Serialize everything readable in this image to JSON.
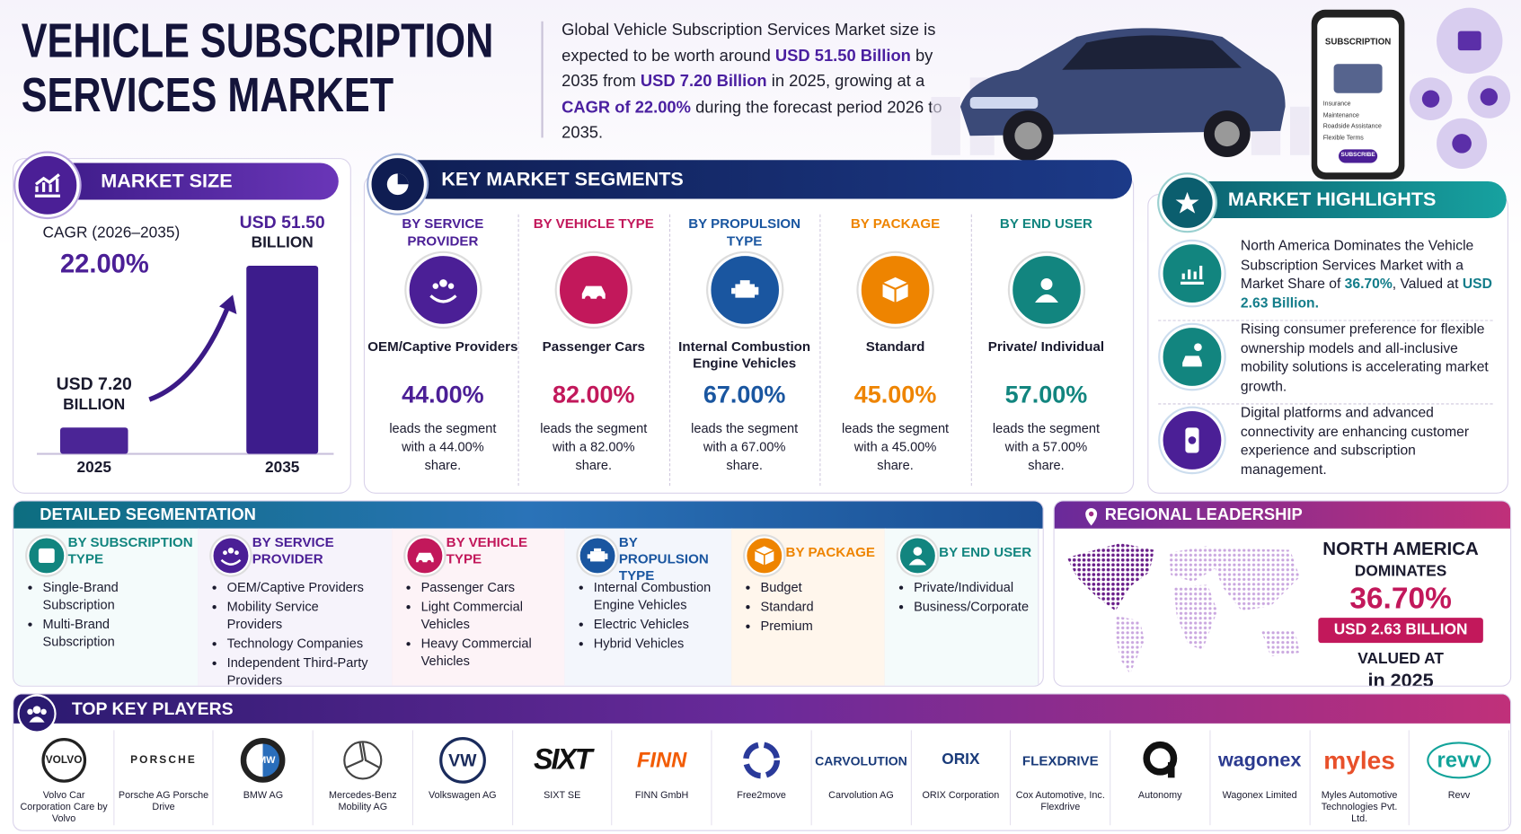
{
  "header": {
    "title_lines": [
      "VEHICLE SUBSCRIPTION",
      "SERVICES MARKET"
    ],
    "intro": [
      {
        "text": "Global Vehicle Subscription Services Market size is expected to be worth around "
      },
      {
        "text": "USD 51.50 Billion",
        "em": true
      },
      {
        "text": " by 2035 from "
      },
      {
        "text": "USD 7.20 Billion",
        "em": true
      },
      {
        "text": " in 2025, growing at a "
      },
      {
        "text": "CAGR of 22.00%",
        "em": true
      },
      {
        "text": " during the forecast period 2026 to 2035."
      }
    ],
    "phone": {
      "title": "SUBSCRIPTION",
      "items": [
        "Insurance",
        "Maintenance",
        "Roadside Assistance",
        "Flexible Terms"
      ],
      "button": "SUBSCRIBE"
    }
  },
  "market_size": {
    "title": "MARKET SIZE",
    "cagr_label": "CAGR (2026–2035)",
    "cagr_value": "22.00%",
    "ylim": [
      0,
      51.5
    ],
    "bars": [
      {
        "year": "2025",
        "value": 7.2,
        "label": "USD 7.20",
        "unit": "BILLION"
      },
      {
        "year": "2035",
        "value": 51.5,
        "label": "USD 51.50",
        "unit": "BILLION"
      }
    ]
  },
  "key_segments": {
    "title": "KEY MARKET SEGMENTS",
    "columns": [
      {
        "heading": "BY SERVICE PROVIDER",
        "color": "#4b1f96",
        "leader": "OEM/Captive Providers",
        "share": "44.00%",
        "note": "leads the segment with a 44.00% share."
      },
      {
        "heading": "BY VEHICLE TYPE",
        "color": "#c2185b",
        "leader": "Passenger Cars",
        "share": "82.00%",
        "note": "leads the segment with a 82.00% share."
      },
      {
        "heading": "BY PROPULSION TYPE",
        "color": "#1a56a0",
        "leader": "Internal Combustion Engine Vehicles",
        "share": "67.00%",
        "note": "leads the segment with a 67.00% share."
      },
      {
        "heading": "BY PACKAGE",
        "color": "#ee8400",
        "leader": "Standard",
        "share": "45.00%",
        "note": "leads the segment with a 45.00% share."
      },
      {
        "heading": "BY END USER",
        "color": "#12857f",
        "leader": "Private/ Individual",
        "share": "57.00%",
        "note": "leads the segment with a 57.00% share."
      }
    ]
  },
  "highlights": {
    "title": "MARKET HIGHLIGHTS",
    "items": [
      [
        {
          "text": "North America Dominates the Vehicle Subscription Services Market with a Market Share of "
        },
        {
          "text": "36.70%",
          "em": true
        },
        {
          "text": ", Valued at "
        },
        {
          "text": "USD 2.63 Billion.",
          "em": true
        }
      ],
      [
        {
          "text": "Rising consumer preference for flexible ownership models and all-inclusive mobility solutions is accelerating market growth."
        }
      ],
      [
        {
          "text": "Digital platforms and advanced connectivity are enhancing customer experience and subscription management."
        }
      ]
    ]
  },
  "detailed": {
    "title": "DETAILED SEGMENTATION",
    "columns": [
      {
        "heading": "BY SUBSCRIPTION TYPE",
        "color": "#12857f",
        "items": [
          "Single-Brand Subscription",
          "Multi-Brand Subscription"
        ]
      },
      {
        "heading": "BY SERVICE PROVIDER",
        "color": "#4b1f96",
        "items": [
          "OEM/Captive Providers",
          "Mobility Service Providers",
          "Technology Companies",
          "Independent Third-Party Providers"
        ]
      },
      {
        "heading": "BY VEHICLE TYPE",
        "color": "#c2185b",
        "items": [
          "Passenger Cars",
          "Light Commercial Vehicles",
          "Heavy Commercial Vehicles"
        ]
      },
      {
        "heading": "BY PROPULSION TYPE",
        "color": "#1a56a0",
        "items": [
          "Internal Combustion Engine Vehicles",
          "Electric Vehicles",
          "Hybrid Vehicles"
        ]
      },
      {
        "heading": "BY PACKAGE",
        "color": "#ee8400",
        "items": [
          "Budget",
          "Standard",
          "Premium"
        ]
      },
      {
        "heading": "BY END USER",
        "color": "#12857f",
        "items": [
          "Private/Individual",
          "Business/Corporate"
        ]
      }
    ]
  },
  "regional": {
    "title": "REGIONAL LEADERSHIP",
    "region": "NORTH AMERICA",
    "verb": "DOMINATES",
    "share": "36.70%",
    "value": "USD 2.63 BILLION",
    "valued": "VALUED AT",
    "year": "in 2025"
  },
  "players": {
    "title": "TOP KEY PLAYERS",
    "list": [
      {
        "logo": "VOLVO",
        "name": "Volvo Car Corporation Care by Volvo"
      },
      {
        "logo": "PORSCHE",
        "name": "Porsche AG Porsche Drive"
      },
      {
        "logo": "BMW",
        "name": "BMW AG"
      },
      {
        "logo": "",
        "name": "Mercedes-Benz Mobility AG"
      },
      {
        "logo": "VW",
        "name": "Volkswagen AG"
      },
      {
        "logo": "SIXT",
        "name": "SIXT SE"
      },
      {
        "logo": "FINN",
        "name": "FINN GmbH"
      },
      {
        "logo": "",
        "name": "Free2move"
      },
      {
        "logo": "CARVOLUTION",
        "name": "Carvolution AG"
      },
      {
        "logo": "ORIX",
        "name": "ORIX Corporation"
      },
      {
        "logo": "FLEXDRIVE",
        "name": "Cox Automotive, Inc. Flexdrive"
      },
      {
        "logo": "",
        "name": "Autonomy"
      },
      {
        "logo": "wagonex",
        "name": "Wagonex Limited"
      },
      {
        "logo": "myles",
        "name": "Myles Automotive Technologies Pvt. Ltd."
      },
      {
        "logo": "revv",
        "name": "Revv"
      }
    ]
  }
}
